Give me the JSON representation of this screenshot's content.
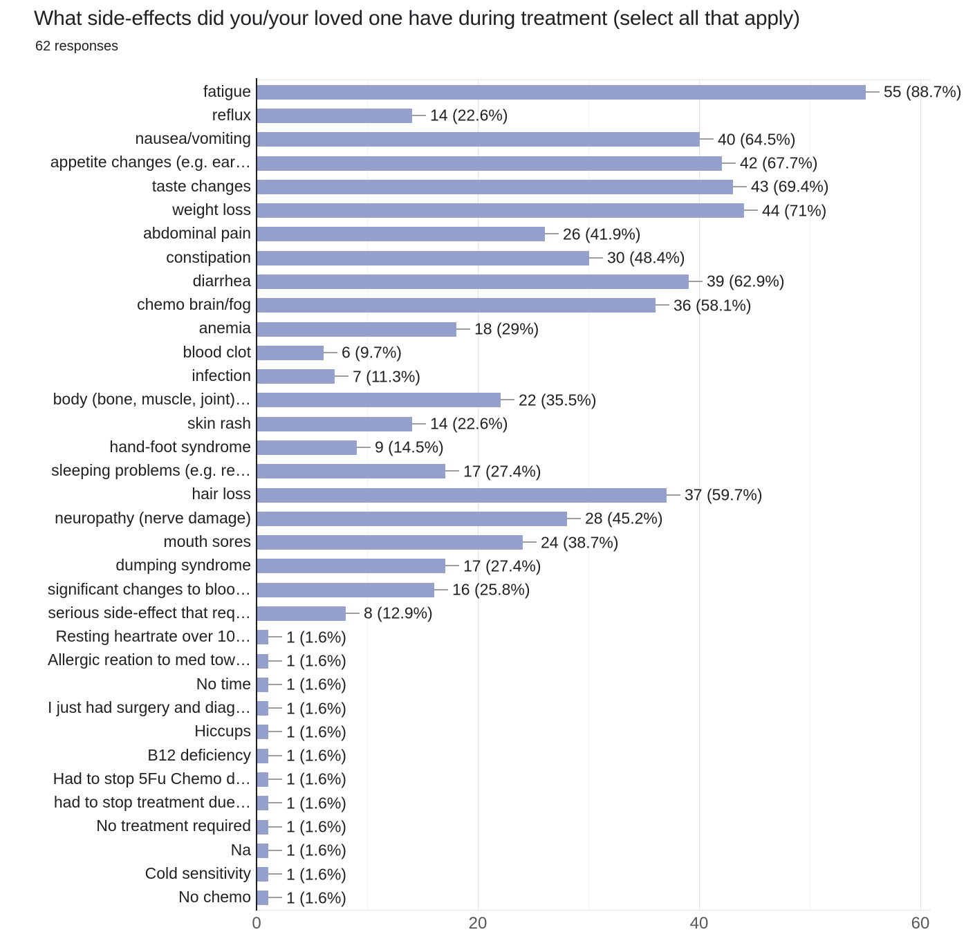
{
  "header": {
    "title": "What side-effects did you/your loved one have during treatment (select all that apply)",
    "subtitle": "62 responses"
  },
  "colors": {
    "bar": "#96a0cd",
    "axis_line": "#1f1f1f",
    "grid_major": "#e4e4e4",
    "grid_minor": "#f1f1f1",
    "stem": "#9e9e9e",
    "label_text": "#212121",
    "tick_text": "#575757",
    "background": "#ffffff"
  },
  "chart_data": {
    "type": "bar",
    "orientation": "horizontal",
    "title": "What side-effects did you/your loved one have during treatment (select all that apply)",
    "subtitle": "62 responses",
    "total_responses": 62,
    "xlabel": "",
    "ylabel": "",
    "xlim": [
      0,
      60
    ],
    "x_ticks": [
      0,
      20,
      40,
      60
    ],
    "grid": "vertical gridlines every 10 units, minor at 10/30/50, major at 20/40/60",
    "legend": "none",
    "categories": [
      "fatigue",
      "reflux",
      "nausea/vomiting",
      "appetite changes (e.g. ear…",
      "taste changes",
      "weight loss",
      "abdominal pain",
      "constipation",
      "diarrhea",
      "chemo brain/fog",
      "anemia",
      "blood clot",
      "infection",
      "body (bone, muscle, joint)…",
      "skin rash",
      "hand-foot syndrome",
      "sleeping problems (e.g. re…",
      "hair loss",
      "neuropathy (nerve damage)",
      "mouth sores",
      "dumping syndrome",
      "significant changes to bloo…",
      "serious side-effect that req…",
      "Resting heartrate over 10…",
      "Allergic reation to med tow…",
      "No time",
      "I just had surgery and diag…",
      "Hiccups",
      "B12 deficiency",
      "Had to stop 5Fu Chemo d…",
      "had to stop treatment due…",
      "No treatment required",
      "Na",
      "Cold sensitivity",
      "No chemo"
    ],
    "values": [
      55,
      14,
      40,
      42,
      43,
      44,
      26,
      30,
      39,
      36,
      18,
      6,
      7,
      22,
      14,
      9,
      17,
      37,
      28,
      24,
      17,
      16,
      8,
      1,
      1,
      1,
      1,
      1,
      1,
      1,
      1,
      1,
      1,
      1,
      1
    ],
    "percentages": [
      88.7,
      22.6,
      64.5,
      67.7,
      69.4,
      71,
      41.9,
      48.4,
      62.9,
      58.1,
      29,
      9.7,
      11.3,
      35.5,
      22.6,
      14.5,
      27.4,
      59.7,
      45.2,
      38.7,
      27.4,
      25.8,
      12.9,
      1.6,
      1.6,
      1.6,
      1.6,
      1.6,
      1.6,
      1.6,
      1.6,
      1.6,
      1.6,
      1.6,
      1.6
    ],
    "value_labels": [
      "55 (88.7%)",
      "14 (22.6%)",
      "40 (64.5%)",
      "42 (67.7%)",
      "43 (69.4%)",
      "44 (71%)",
      "26 (41.9%)",
      "30 (48.4%)",
      "39 (62.9%)",
      "36 (58.1%)",
      "18 (29%)",
      "6 (9.7%)",
      "7 (11.3%)",
      "22 (35.5%)",
      "14 (22.6%)",
      "9 (14.5%)",
      "17 (27.4%)",
      "37 (59.7%)",
      "28 (45.2%)",
      "24 (38.7%)",
      "17 (27.4%)",
      "16 (25.8%)",
      "8 (12.9%)",
      "1 (1.6%)",
      "1 (1.6%)",
      "1 (1.6%)",
      "1 (1.6%)",
      "1 (1.6%)",
      "1 (1.6%)",
      "1 (1.6%)",
      "1 (1.6%)",
      "1 (1.6%)",
      "1 (1.6%)",
      "1 (1.6%)",
      "1 (1.6%)"
    ]
  }
}
